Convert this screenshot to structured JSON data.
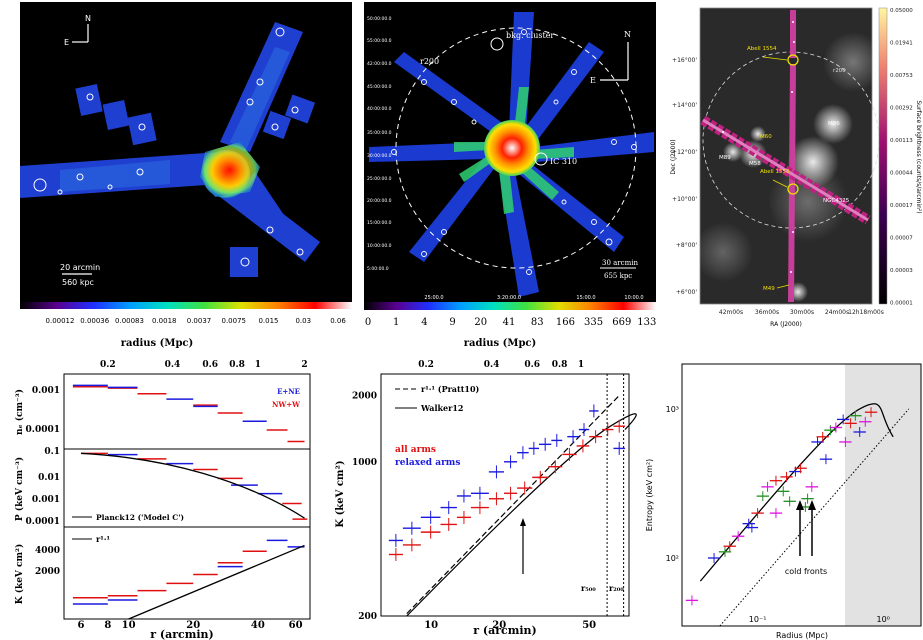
{
  "top_left": {
    "compass_n": "N",
    "compass_e": "E",
    "scale_arcmin": "20 arcmin",
    "scale_kpc": "560 kpc",
    "colorbar_ticks": [
      "0.00012",
      "0.00036",
      "0.00083",
      "0.0018",
      "0.0037",
      "0.0075",
      "0.015",
      "0.03",
      "0.06"
    ]
  },
  "top_mid": {
    "bkg_label": "bkg. cluster",
    "r200_label": "r200",
    "ic310_label": "IC 310",
    "compass_n": "N",
    "compass_e": "E",
    "scale_arcmin": "30 arcmin",
    "scale_kpc": "655 kpc",
    "dec_ticks": [
      "50:00:00.0",
      "55:00:00.0",
      "42:00:00.0",
      "45:00:00.0",
      "40:00:00.0",
      "35:00:00.0",
      "30:00:00.0",
      "25:00:00.0",
      "20:00:00.0",
      "15:00:00.0",
      "10:00:00.0",
      "5:00:00.0",
      "42:00:00.0",
      "35:00:00.0",
      "30:00:00.0"
    ],
    "ra_ticks": [
      "25:00.0",
      "3:20:00.0",
      "15:00.0",
      "10:00.0"
    ],
    "colorbar_ticks": [
      "0",
      "1",
      "4",
      "9",
      "20",
      "41",
      "83",
      "166",
      "335",
      "669",
      "1333"
    ]
  },
  "top_right": {
    "abell1554": "Abell\n1554",
    "abell1553": "Abell\n1553",
    "m60": "M60",
    "m86": "M86",
    "m89": "M89",
    "m58": "M58",
    "m49": "M49",
    "ngc4325": "NGC4325",
    "r200": "r200",
    "dec_label": "Dec (J2000)",
    "ra_label": "RA (J2000)",
    "dec_ticks": [
      "+16°00'",
      "+14°00'",
      "+12°00'",
      "+10°00'",
      "+8°00'",
      "+6°00'"
    ],
    "ra_ticks": [
      "42m00s",
      "36m00s",
      "30m00s",
      "24m00s",
      "12h18m00s"
    ],
    "colorbar_label": "Surface brightness (counts/s/arcmin²)",
    "colorbar_ticks": [
      "0.05000",
      "0.01941",
      "0.00753",
      "0.00292",
      "0.00113",
      "0.00044",
      "0.00017",
      "0.00007",
      "0.00003",
      "0.00001"
    ]
  },
  "bottom_left": {
    "top_axis_title": "radius (Mpc)",
    "top_ticks": [
      "0.2",
      "0.4",
      "0.6",
      "0.8",
      "1",
      "2"
    ],
    "bottom_axis_title": "r (arcmin)",
    "bottom_ticks": [
      "6",
      "8",
      "10",
      "20",
      "40",
      "60"
    ],
    "ne_ylabel": "nₑ (cm⁻³)",
    "ne_ticks": [
      "0.001",
      "0.0001"
    ],
    "p_ylabel": "P (keV cm⁻³)",
    "p_ticks": [
      "0.1",
      "0.01",
      "0.001",
      "0.0001"
    ],
    "k_ylabel": "K (keV cm²)",
    "k_ticks": [
      "4000",
      "2000"
    ],
    "legend_enne": "E+NE",
    "legend_nww": "NW+W",
    "planck_label": "Planck12 ('Model C')",
    "r11_label": "r¹·¹",
    "color_blue": "#1a1adf",
    "color_red": "#e01010"
  },
  "bottom_mid": {
    "top_axis_title": "radius (Mpc)",
    "top_ticks": [
      "0.2",
      "0.4",
      "0.6",
      "0.8",
      "1"
    ],
    "bottom_axis_title": "r (arcmin)",
    "bottom_ticks": [
      "10",
      "20",
      "50"
    ],
    "ylabel": "K (keV cm²)",
    "y_ticks": [
      "2000",
      "1000",
      "200"
    ],
    "legend_pratt": "r¹·¹ (Pratt10)",
    "legend_walker": "Walker12",
    "label_all": "all arms",
    "label_relaxed": "relaxed arms",
    "r500": "r₅₀₀",
    "r200": "r₂₀₀"
  },
  "bottom_right": {
    "ylabel": "Entropy (keV cm²)",
    "xlabel": "Radius (Mpc)",
    "y_ticks": [
      "10³",
      "10²"
    ],
    "x_ticks": [
      "10⁻¹",
      "10⁰"
    ],
    "annotation": "cold fronts"
  }
}
